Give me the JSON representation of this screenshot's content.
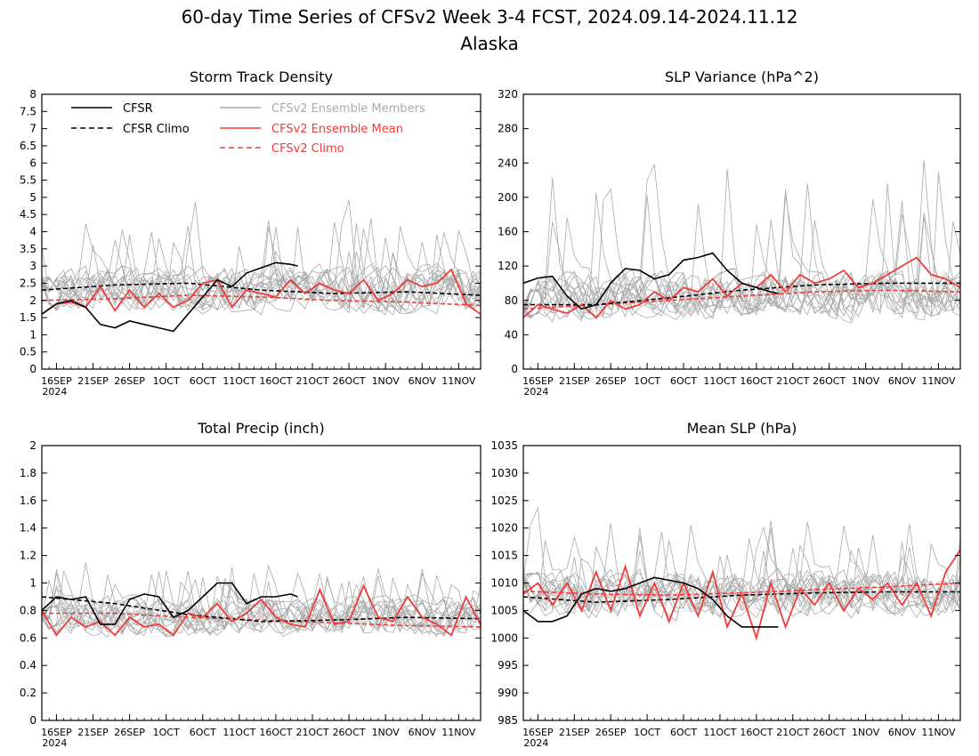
{
  "figure": {
    "title_line1": "60-day Time Series of CFSv2 Week 3-4 FCST, 2024.09.14-2024.11.12",
    "title_line2": "Alaska"
  },
  "legend": {
    "cfsr": "CFSR",
    "cfsr_climo": "CFSR Climo",
    "members": "CFSv2 Ensemble Members",
    "ens_mean": "CFSv2 Ensemble Mean",
    "cfsv2_climo": "CFSv2 Climo"
  },
  "colors": {
    "cfsr": "#000000",
    "cfsr_climo": "#000000",
    "members": "#aaaaaa",
    "ens_mean": "#ef3b3b",
    "cfsv2_climo": "#ef3b3b"
  },
  "x_axis": {
    "year_label": "2024",
    "tick_days": [
      2,
      7,
      12,
      17,
      22,
      27,
      32,
      37,
      42,
      47,
      52,
      57
    ],
    "tick_labels": [
      "16SEP",
      "21SEP",
      "26SEP",
      "1OCT",
      "6OCT",
      "11OCT",
      "16OCT",
      "21OCT",
      "26OCT",
      "1NOV",
      "6NOV",
      "11NOV"
    ]
  },
  "chart_data": [
    {
      "type": "line",
      "title": "Storm Track Density",
      "ylim": [
        0,
        8
      ],
      "yticks": [
        0,
        0.5,
        1,
        1.5,
        2,
        2.5,
        3,
        3.5,
        4,
        4.5,
        5,
        5.5,
        6,
        6.5,
        7,
        7.5,
        8
      ],
      "ytick_labels": [
        "0",
        "0.5",
        "1",
        "1.5",
        "2",
        "2.5",
        "3",
        "3.5",
        "4",
        "4.5",
        "5",
        "5.5",
        "6",
        "6.5",
        "7",
        "7.5",
        "8"
      ],
      "legend": true,
      "members": {
        "center": 2.3,
        "spread": 0.85,
        "spike_max": 5.6,
        "count": 16
      },
      "series": [
        {
          "key": "cfsr",
          "name": "CFSR",
          "style": "solid",
          "x": [
            0,
            2,
            4,
            6,
            8,
            10,
            12,
            14,
            16,
            18,
            20,
            22,
            24,
            26,
            28,
            30,
            32,
            34,
            35
          ],
          "values": [
            1.6,
            1.9,
            2.0,
            1.8,
            1.3,
            1.2,
            1.4,
            1.3,
            1.2,
            1.1,
            1.6,
            2.1,
            2.6,
            2.4,
            2.8,
            2.95,
            3.1,
            3.05,
            3.0
          ]
        },
        {
          "key": "cfsr_climo",
          "name": "CFSR Climo",
          "style": "dash",
          "x": [
            0,
            10,
            20,
            30,
            40,
            50,
            60
          ],
          "values": [
            2.3,
            2.45,
            2.5,
            2.3,
            2.2,
            2.25,
            2.15
          ]
        },
        {
          "key": "ens_mean",
          "name": "CFSv2 Ensemble Mean",
          "style": "solid",
          "x": [
            0,
            2,
            4,
            6,
            8,
            10,
            12,
            14,
            16,
            18,
            20,
            22,
            24,
            26,
            28,
            30,
            32,
            34,
            36,
            38,
            40,
            42,
            44,
            46,
            48,
            50,
            52,
            54,
            56,
            58,
            60
          ],
          "values": [
            1.6,
            1.9,
            1.95,
            1.8,
            2.4,
            1.7,
            2.3,
            1.8,
            2.2,
            1.8,
            2.0,
            2.5,
            2.6,
            1.8,
            2.3,
            2.2,
            2.1,
            2.6,
            2.2,
            2.5,
            2.3,
            2.2,
            2.6,
            2.0,
            2.2,
            2.6,
            2.4,
            2.5,
            2.9,
            1.9,
            1.6
          ]
        },
        {
          "key": "cfsv2_climo",
          "name": "CFSv2 Climo",
          "style": "dash",
          "x": [
            0,
            10,
            20,
            30,
            40,
            50,
            60
          ],
          "values": [
            2.0,
            2.05,
            2.15,
            2.1,
            2.0,
            1.95,
            1.85
          ]
        }
      ]
    },
    {
      "type": "line",
      "title": "SLP Variance (hPa^2)",
      "ylim": [
        0,
        320
      ],
      "yticks": [
        0,
        40,
        80,
        120,
        160,
        200,
        240,
        280,
        320
      ],
      "ytick_labels": [
        "0",
        "40",
        "80",
        "120",
        "160",
        "200",
        "240",
        "280",
        "320"
      ],
      "legend": false,
      "members": {
        "center": 85,
        "spread": 35,
        "spike_max": 320,
        "count": 16
      },
      "series": [
        {
          "key": "cfsr",
          "name": "CFSR",
          "style": "solid",
          "x": [
            0,
            2,
            4,
            6,
            8,
            10,
            12,
            14,
            16,
            18,
            20,
            22,
            24,
            26,
            28,
            30,
            32,
            34,
            35
          ],
          "values": [
            100,
            106,
            108,
            85,
            70,
            75,
            100,
            117,
            115,
            105,
            110,
            127,
            130,
            135,
            115,
            100,
            95,
            90,
            88
          ]
        },
        {
          "key": "cfsr_climo",
          "name": "CFSR Climo",
          "style": "dash",
          "x": [
            0,
            10,
            20,
            30,
            40,
            50,
            60
          ],
          "values": [
            75,
            75,
            83,
            92,
            98,
            100,
            100
          ]
        },
        {
          "key": "ens_mean",
          "name": "CFSv2 Ensemble Mean",
          "style": "solid",
          "x": [
            0,
            2,
            4,
            6,
            8,
            10,
            12,
            14,
            16,
            18,
            20,
            22,
            24,
            26,
            28,
            30,
            32,
            34,
            36,
            38,
            40,
            42,
            44,
            46,
            48,
            50,
            52,
            54,
            56,
            58,
            60
          ],
          "values": [
            60,
            75,
            70,
            65,
            75,
            60,
            80,
            70,
            75,
            90,
            80,
            95,
            90,
            105,
            85,
            100,
            95,
            110,
            90,
            110,
            100,
            105,
            115,
            95,
            100,
            110,
            120,
            130,
            110,
            105,
            95
          ]
        },
        {
          "key": "cfsv2_climo",
          "name": "CFSv2 Climo",
          "style": "dash",
          "x": [
            0,
            10,
            20,
            30,
            40,
            50,
            60
          ],
          "values": [
            70,
            75,
            80,
            85,
            90,
            92,
            90
          ]
        }
      ]
    },
    {
      "type": "line",
      "title": "Total Precip (inch)",
      "ylim": [
        0,
        2
      ],
      "yticks": [
        0,
        0.2,
        0.4,
        0.6,
        0.8,
        1,
        1.2,
        1.4,
        1.6,
        1.8,
        2
      ],
      "ytick_labels": [
        "0",
        "0.2",
        "0.4",
        "0.6",
        "0.8",
        "1",
        "1.2",
        "1.4",
        "1.6",
        "1.8",
        "2"
      ],
      "legend": false,
      "members": {
        "center": 0.75,
        "spread": 0.18,
        "spike_max": 1.32,
        "count": 16
      },
      "series": [
        {
          "key": "cfsr",
          "name": "CFSR",
          "style": "solid",
          "x": [
            0,
            2,
            4,
            6,
            8,
            10,
            12,
            14,
            16,
            18,
            20,
            22,
            24,
            26,
            28,
            30,
            32,
            34,
            35
          ],
          "values": [
            0.8,
            0.9,
            0.88,
            0.9,
            0.7,
            0.7,
            0.88,
            0.92,
            0.9,
            0.75,
            0.8,
            0.9,
            1.0,
            1.0,
            0.85,
            0.9,
            0.9,
            0.92,
            0.9
          ]
        },
        {
          "key": "cfsr_climo",
          "name": "CFSR Climo",
          "style": "dash",
          "x": [
            0,
            10,
            20,
            30,
            40,
            50,
            60
          ],
          "values": [
            0.9,
            0.85,
            0.77,
            0.72,
            0.73,
            0.75,
            0.74
          ]
        },
        {
          "key": "ens_mean",
          "name": "CFSv2 Ensemble Mean",
          "style": "solid",
          "x": [
            0,
            2,
            4,
            6,
            8,
            10,
            12,
            14,
            16,
            18,
            20,
            22,
            24,
            26,
            28,
            30,
            32,
            34,
            36,
            38,
            40,
            42,
            44,
            46,
            48,
            50,
            52,
            54,
            56,
            58,
            60
          ],
          "values": [
            0.8,
            0.62,
            0.75,
            0.68,
            0.72,
            0.62,
            0.75,
            0.68,
            0.7,
            0.62,
            0.78,
            0.75,
            0.85,
            0.72,
            0.78,
            0.88,
            0.75,
            0.7,
            0.68,
            0.95,
            0.7,
            0.72,
            0.98,
            0.75,
            0.72,
            0.9,
            0.75,
            0.7,
            0.62,
            0.9,
            0.7
          ]
        },
        {
          "key": "cfsv2_climo",
          "name": "CFSv2 Climo",
          "style": "dash",
          "x": [
            0,
            10,
            20,
            30,
            40,
            50,
            60
          ],
          "values": [
            0.78,
            0.78,
            0.75,
            0.73,
            0.71,
            0.69,
            0.68
          ]
        }
      ]
    },
    {
      "type": "line",
      "title": "Mean SLP (hPa)",
      "ylim": [
        985,
        1035
      ],
      "yticks": [
        985,
        990,
        995,
        1000,
        1005,
        1010,
        1015,
        1020,
        1025,
        1030,
        1035
      ],
      "ytick_labels": [
        "985",
        "990",
        "995",
        "1000",
        "1005",
        "1010",
        "1015",
        "1020",
        "1025",
        "1030",
        "1035"
      ],
      "legend": false,
      "members": {
        "center": 1008,
        "spread": 5.5,
        "spike_max": 1027,
        "count": 16
      },
      "series": [
        {
          "key": "cfsr",
          "name": "CFSR",
          "style": "solid",
          "x": [
            0,
            2,
            4,
            6,
            8,
            10,
            12,
            14,
            16,
            18,
            20,
            22,
            24,
            26,
            28,
            30,
            32,
            34,
            35
          ],
          "values": [
            1005,
            1003,
            1003,
            1004,
            1008,
            1009,
            1008.5,
            1009,
            1010,
            1011,
            1010.5,
            1010,
            1009,
            1007,
            1004,
            1002,
            1002,
            1002,
            1002
          ]
        },
        {
          "key": "cfsr_climo",
          "name": "CFSR Climo",
          "style": "dash",
          "x": [
            0,
            10,
            20,
            30,
            40,
            50,
            60
          ],
          "values": [
            1007.5,
            1006.5,
            1007,
            1007.8,
            1008.2,
            1008.4,
            1008.4
          ]
        },
        {
          "key": "ens_mean",
          "name": "CFSv2 Ensemble Mean",
          "style": "solid",
          "x": [
            0,
            2,
            4,
            6,
            8,
            10,
            12,
            14,
            16,
            18,
            20,
            22,
            24,
            26,
            28,
            30,
            32,
            34,
            36,
            38,
            40,
            42,
            44,
            46,
            48,
            50,
            52,
            54,
            56,
            58,
            60
          ],
          "values": [
            1008,
            1010,
            1006,
            1010,
            1005,
            1012,
            1005,
            1013,
            1004,
            1010,
            1003,
            1010,
            1004,
            1012,
            1002,
            1008,
            1000,
            1010,
            1002,
            1009,
            1006,
            1010,
            1005,
            1009,
            1007,
            1010,
            1006,
            1010,
            1004,
            1012,
            1016
          ]
        },
        {
          "key": "cfsv2_climo",
          "name": "CFSv2 Climo",
          "style": "dash",
          "x": [
            0,
            10,
            20,
            30,
            40,
            50,
            60
          ],
          "values": [
            1008.5,
            1008,
            1007.8,
            1008.2,
            1008.8,
            1009.3,
            1010
          ]
        }
      ]
    }
  ]
}
